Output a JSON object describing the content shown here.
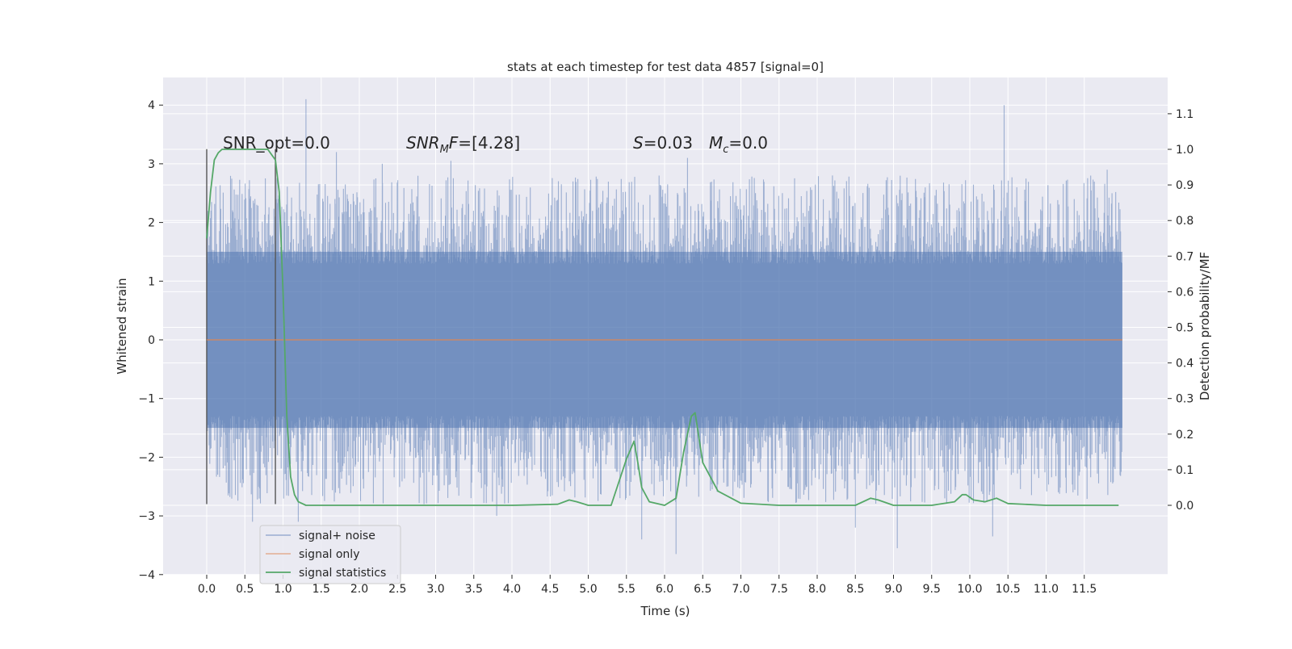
{
  "chart_data": {
    "type": "line",
    "title": "stats at each timestep for test data 4857 [signal=0]",
    "xlabel": "Time (s)",
    "ylabel_left": "Whitened strain",
    "ylabel_right": "Detection probability/MF",
    "xlim": [
      -0.58,
      12.58
    ],
    "ylim_left": [
      -4.2,
      4.45
    ],
    "ylim_right": [
      -0.196,
      1.194
    ],
    "x_ticks": [
      "0.0",
      "0.5",
      "1.0",
      "1.5",
      "2.0",
      "2.5",
      "3.0",
      "3.5",
      "4.0",
      "4.5",
      "5.0",
      "5.5",
      "6.0",
      "6.5",
      "7.0",
      "7.5",
      "8.0",
      "8.5",
      "9.0",
      "9.5",
      "10.0",
      "10.5",
      "11.0",
      "11.5"
    ],
    "y_left_ticks": [
      "4",
      "3",
      "2",
      "1",
      "0",
      "−1",
      "−2",
      "−3",
      "−4"
    ],
    "y_right_ticks": [
      "1.1",
      "1.0",
      "0.9",
      "0.8",
      "0.7",
      "0.6",
      "0.5",
      "0.4",
      "0.3",
      "0.2",
      "0.1",
      "0.0"
    ],
    "grid": true,
    "legend_position": "lower-left",
    "annotations": {
      "snr_opt": "SNR_opt=0.0",
      "snr_mf": "[4.28]",
      "s_value": "=0.03",
      "mc_value": "=0.0"
    },
    "series": [
      {
        "name": "signal+ noise",
        "color": "#4c72b0",
        "axis": "left",
        "x_range": [
          0.0,
          12.0
        ],
        "band": [
          -1.5,
          1.5
        ],
        "peaks": [
          [
            1.3,
            4.1
          ],
          [
            10.45,
            4.0
          ],
          [
            1.7,
            3.2
          ],
          [
            2.3,
            3.0
          ],
          [
            3.2,
            3.05
          ],
          [
            6.3,
            3.1
          ],
          [
            11.8,
            2.9
          ],
          [
            4.8,
            2.7
          ],
          [
            8.2,
            2.8
          ],
          [
            1.2,
            -3.1
          ],
          [
            6.15,
            -3.65
          ],
          [
            9.05,
            -3.55
          ],
          [
            0.6,
            -3.1
          ],
          [
            3.8,
            -3.0
          ],
          [
            10.3,
            -3.35
          ],
          [
            5.7,
            -3.4
          ],
          [
            8.5,
            -3.2
          ]
        ]
      },
      {
        "name": "signal only",
        "color": "#dd8452",
        "axis": "left",
        "x": [
          0.0,
          12.0
        ],
        "y": [
          0.0,
          0.0
        ]
      },
      {
        "name": "signal statistics",
        "color": "#55a868",
        "axis": "right",
        "x": [
          0.0,
          0.05,
          0.1,
          0.15,
          0.2,
          0.3,
          0.4,
          0.5,
          0.6,
          0.7,
          0.8,
          0.9,
          0.95,
          1.0,
          1.05,
          1.1,
          1.15,
          1.2,
          1.3,
          1.5,
          2.0,
          3.0,
          4.0,
          4.6,
          4.75,
          4.85,
          5.0,
          5.3,
          5.5,
          5.6,
          5.65,
          5.7,
          5.8,
          6.0,
          6.15,
          6.25,
          6.35,
          6.4,
          6.5,
          6.7,
          7.0,
          7.5,
          8.5,
          8.7,
          8.8,
          9.0,
          9.5,
          9.8,
          9.9,
          9.95,
          10.05,
          10.2,
          10.35,
          10.5,
          11.0,
          11.5,
          11.95
        ],
        "y": [
          0.75,
          0.88,
          0.97,
          0.99,
          1.0,
          1.0,
          1.0,
          1.0,
          1.0,
          1.0,
          1.0,
          0.97,
          0.88,
          0.6,
          0.25,
          0.08,
          0.03,
          0.01,
          0.0,
          0.0,
          0.0,
          0.0,
          0.0,
          0.003,
          0.015,
          0.01,
          0.0,
          0.0,
          0.13,
          0.18,
          0.12,
          0.05,
          0.01,
          0.0,
          0.02,
          0.15,
          0.25,
          0.26,
          0.12,
          0.04,
          0.006,
          0.0,
          0.0,
          0.02,
          0.015,
          0.0,
          0.0,
          0.01,
          0.03,
          0.03,
          0.015,
          0.01,
          0.02,
          0.005,
          0.0,
          0.0,
          0.0
        ]
      }
    ],
    "markers": [
      {
        "x": 0.0,
        "y_range": [
          -2.8,
          3.25
        ]
      },
      {
        "x": 0.9,
        "y_range": [
          -2.8,
          3.25
        ]
      }
    ]
  }
}
